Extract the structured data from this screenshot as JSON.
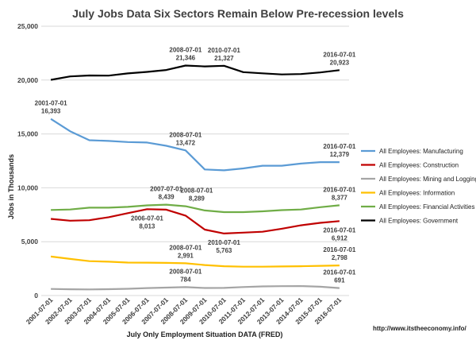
{
  "chart_data": {
    "type": "line",
    "title": "July Jobs Data Six Sectors Remain Below Pre-recession levels",
    "xlabel": "July Only Employment Situation DATA (FRED)",
    "ylabel": "Jobs in Thousands",
    "ylim": [
      0,
      25000
    ],
    "yticks": [
      "0",
      "5,000",
      "10,000",
      "15,000",
      "20,000",
      "25,000"
    ],
    "categories": [
      "2001-07-01",
      "2002-07-01",
      "2003-07-01",
      "2004-07-01",
      "2005-07-01",
      "2006-07-01",
      "2007-07-01",
      "2008-07-01",
      "2009-07-01",
      "2010-07-01",
      "2011-07-01",
      "2012-07-01",
      "2013-07-01",
      "2014-07-01",
      "2015-07-01",
      "2016-07-01"
    ],
    "grid": true,
    "legend_position": "right",
    "series": [
      {
        "name": "All Employees: Manufacturing",
        "color": "#5b9bd5",
        "values": [
          16393,
          15250,
          14420,
          14350,
          14250,
          14200,
          13900,
          13472,
          11700,
          11620,
          11800,
          12050,
          12050,
          12250,
          12380,
          12379
        ]
      },
      {
        "name": "All Employees: Construction",
        "color": "#c00000",
        "values": [
          7120,
          6950,
          6990,
          7270,
          7650,
          8013,
          7970,
          7420,
          6120,
          5763,
          5840,
          5920,
          6200,
          6520,
          6750,
          6912
        ]
      },
      {
        "name": "All Employees: Mining and Logging",
        "color": "#a5a5a5",
        "values": [
          610,
          580,
          570,
          590,
          630,
          690,
          740,
          784,
          700,
          710,
          790,
          850,
          870,
          880,
          820,
          691
        ]
      },
      {
        "name": "All Employees: Information",
        "color": "#ffc000",
        "values": [
          3620,
          3400,
          3190,
          3140,
          3060,
          3050,
          3030,
          2991,
          2830,
          2720,
          2680,
          2680,
          2700,
          2720,
          2760,
          2798
        ]
      },
      {
        "name": "All Employees: Financial Activities",
        "color": "#70ad47",
        "values": [
          7940,
          7990,
          8160,
          8160,
          8230,
          8370,
          8439,
          8289,
          7900,
          7740,
          7740,
          7820,
          7930,
          7990,
          8200,
          8377
        ]
      },
      {
        "name": "All Employees: Government",
        "color": "#000000",
        "values": [
          20020,
          20340,
          20430,
          20410,
          20620,
          20760,
          20940,
          21346,
          21270,
          21327,
          20740,
          20630,
          20520,
          20560,
          20710,
          20923
        ]
      }
    ],
    "annotations": [
      {
        "series": 0,
        "index": 0,
        "date": "2001-07-01",
        "value": "16,393",
        "pos": "above"
      },
      {
        "series": 0,
        "index": 7,
        "date": "2008-07-01",
        "value": "13,472",
        "pos": "above"
      },
      {
        "series": 0,
        "index": 15,
        "date": "2016-07-01",
        "value": "12,379",
        "pos": "above"
      },
      {
        "series": 5,
        "index": 7,
        "date": "2008-07-01",
        "value": "21,346",
        "pos": "above"
      },
      {
        "series": 5,
        "index": 9,
        "date": "2010-07-01",
        "value": "21,327",
        "pos": "above"
      },
      {
        "series": 5,
        "index": 15,
        "date": "2016-07-01",
        "value": "20,923",
        "pos": "above"
      },
      {
        "series": 4,
        "index": 6,
        "date": "2007-07-01",
        "value": "8,439",
        "pos": "above"
      },
      {
        "series": 4,
        "index": 7,
        "date": "2008-07-01",
        "value": "8,289",
        "pos": "above-right"
      },
      {
        "series": 4,
        "index": 15,
        "date": "2016-07-01",
        "value": "8,377",
        "pos": "above"
      },
      {
        "series": 1,
        "index": 5,
        "date": "2006-07-01",
        "value": "8,013",
        "pos": "below"
      },
      {
        "series": 1,
        "index": 9,
        "date": "2010-07-01",
        "value": "5,763",
        "pos": "below"
      },
      {
        "series": 1,
        "index": 15,
        "date": "2016-07-01",
        "value": "6,912",
        "pos": "below"
      },
      {
        "series": 3,
        "index": 7,
        "date": "2008-07-01",
        "value": "2,991",
        "pos": "above"
      },
      {
        "series": 3,
        "index": 15,
        "date": "2016-07-01",
        "value": "2,798",
        "pos": "above"
      },
      {
        "series": 2,
        "index": 7,
        "date": "2008-07-01",
        "value": "784",
        "pos": "above"
      },
      {
        "series": 2,
        "index": 15,
        "date": "2016-07-01",
        "value": "691",
        "pos": "above"
      }
    ],
    "source": "http://www.itstheeconomy.info/"
  }
}
